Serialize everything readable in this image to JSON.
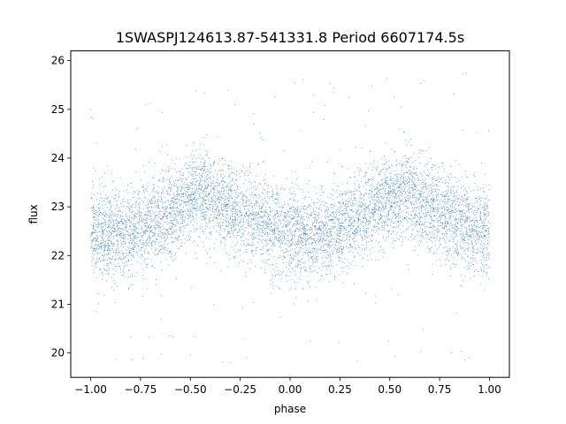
{
  "chart_data": {
    "type": "scatter",
    "title": "1SWASPJ124613.87-541331.8 Period 6607174.5s",
    "xlabel": "phase",
    "ylabel": "flux",
    "xlim": [
      -1.1,
      1.1
    ],
    "ylim": [
      19.5,
      26.2
    ],
    "xticks": [
      "−1.00",
      "−0.75",
      "−0.50",
      "−0.25",
      "0.00",
      "0.25",
      "0.50",
      "0.75",
      "1.00"
    ],
    "yticks": [
      "20",
      "21",
      "22",
      "23",
      "24",
      "25",
      "26"
    ],
    "grid": false,
    "legend": "none",
    "point_color": "#1f77b4",
    "series": [
      {
        "phase_range": [
          -1.0,
          1.0
        ],
        "mean_flux_profile": {
          "x": [
            -1.0,
            -0.9,
            -0.8,
            -0.7,
            -0.6,
            -0.5,
            -0.4,
            -0.3,
            -0.2,
            -0.1,
            0.0,
            0.1,
            0.2,
            0.3,
            0.4,
            0.5,
            0.6,
            0.7,
            0.8,
            0.9,
            1.0
          ],
          "y": [
            22.5,
            22.4,
            22.5,
            22.7,
            22.9,
            23.2,
            23.2,
            23.0,
            22.8,
            22.6,
            22.5,
            22.4,
            22.5,
            22.7,
            22.9,
            23.2,
            23.2,
            23.0,
            22.8,
            22.6,
            22.5
          ]
        },
        "flux_spread_1sigma": 0.45,
        "flux_outlier_range": [
          19.8,
          25.8
        ]
      }
    ]
  }
}
